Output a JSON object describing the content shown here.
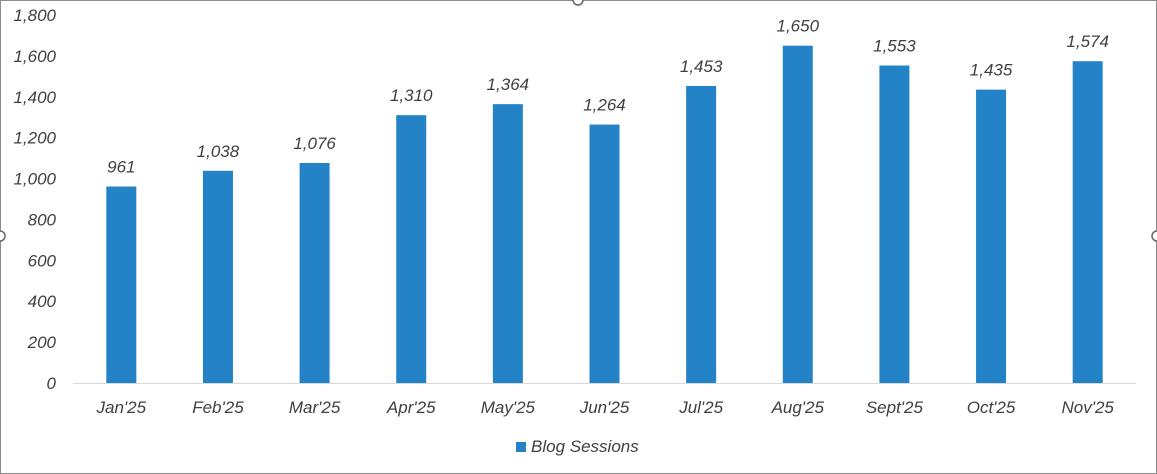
{
  "chart_data": {
    "type": "bar",
    "categories": [
      "Jan'25",
      "Feb'25",
      "Mar'25",
      "Apr'25",
      "May'25",
      "Jun'25",
      "Jul'25",
      "Aug'25",
      "Sept'25",
      "Oct'25",
      "Nov'25"
    ],
    "series": [
      {
        "name": "Blog Sessions",
        "values": [
          961,
          1038,
          1076,
          1310,
          1364,
          1264,
          1453,
          1650,
          1553,
          1435,
          1574
        ],
        "labels": [
          "961",
          "1,038",
          "1,076",
          "1,310",
          "1,364",
          "1,264",
          "1,453",
          "1,650",
          "1,553",
          "1,435",
          "1,574"
        ],
        "color": "#2383C6"
      }
    ],
    "ylim": [
      0,
      1800
    ],
    "yticks": [
      0,
      200,
      400,
      600,
      800,
      1000,
      1200,
      1400,
      1600,
      1800
    ],
    "ytick_labels": [
      "0",
      "200",
      "400",
      "600",
      "800",
      "1,000",
      "1,200",
      "1,400",
      "1,600",
      "1,800"
    ],
    "grid": false,
    "legend_position": "bottom",
    "title": "",
    "xlabel": "",
    "ylabel": ""
  },
  "colors": {
    "bar": "#2383C6",
    "axis_line": "#D9D9D9",
    "frame": "#8C8C8C",
    "text": "#404040"
  }
}
